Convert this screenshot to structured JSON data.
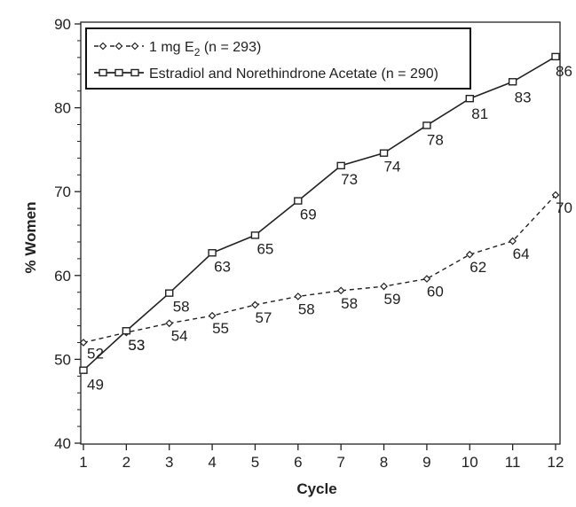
{
  "chart_data": {
    "type": "line",
    "title": "",
    "xlabel": "Cycle",
    "ylabel": "% Women",
    "x": [
      1,
      2,
      3,
      4,
      5,
      6,
      7,
      8,
      9,
      10,
      11,
      12
    ],
    "xlim": [
      1,
      12
    ],
    "ylim": [
      40,
      90
    ],
    "yticks": [
      40,
      50,
      60,
      70,
      80,
      90
    ],
    "grid": false,
    "legend_position": "top-left",
    "series": [
      {
        "name": "1 mg E2 (n = 293)",
        "legend_main": "1 mg E",
        "legend_sub": "2",
        "legend_rest": " (n = 293)",
        "style": "dashed",
        "marker": "diamond",
        "values": [
          52,
          53,
          54,
          55,
          57,
          58,
          58,
          59,
          60,
          62,
          64,
          70
        ],
        "plot_y": [
          52.0,
          53.2,
          54.3,
          55.2,
          56.5,
          57.5,
          58.2,
          58.7,
          59.6,
          62.5,
          64.1,
          69.6
        ]
      },
      {
        "name": "Estradiol and Norethindrone Acetate (n = 290)",
        "legend_main": "Estradiol and Norethindrone Acetate (n = 290)",
        "legend_sub": "",
        "legend_rest": "",
        "style": "solid",
        "marker": "square",
        "values": [
          49,
          53,
          58,
          63,
          65,
          69,
          73,
          74,
          78,
          81,
          83,
          86
        ],
        "plot_y": [
          48.7,
          53.4,
          57.9,
          62.7,
          64.8,
          68.9,
          73.1,
          74.6,
          77.9,
          81.1,
          83.1,
          86.1
        ]
      }
    ]
  }
}
